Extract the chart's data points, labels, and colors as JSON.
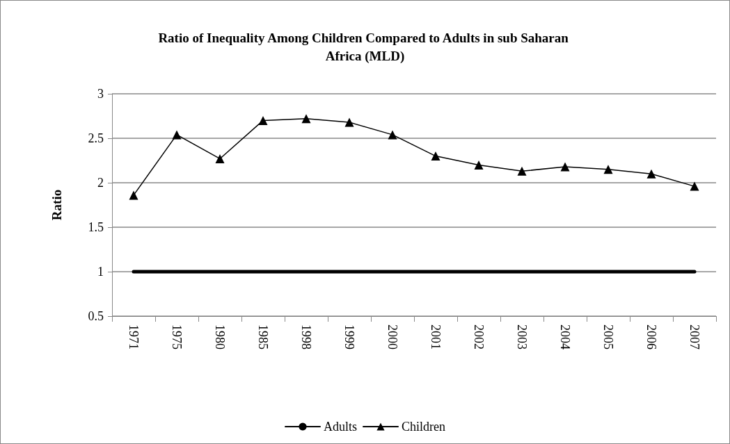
{
  "chart_data": {
    "type": "line",
    "title": "Ratio of Inequality Among Children Compared to Adults in sub Saharan Africa (MLD)",
    "ylabel": "Ratio",
    "categories": [
      "1971",
      "1975",
      "1980",
      "1985",
      "1998",
      "1999",
      "2000",
      "2001",
      "2002",
      "2003",
      "2004",
      "2005",
      "2006",
      "2007"
    ],
    "series": [
      {
        "name": "Adults",
        "color": "#000000",
        "marker": "none",
        "values": [
          1,
          1,
          1,
          1,
          1,
          1,
          1,
          1,
          1,
          1,
          1,
          1,
          1,
          1
        ]
      },
      {
        "name": "Children",
        "color": "#000000",
        "marker": "triangle",
        "values": [
          1.86,
          2.54,
          2.27,
          2.7,
          2.72,
          2.68,
          2.54,
          2.3,
          2.2,
          2.13,
          2.18,
          2.15,
          2.1,
          1.96
        ]
      }
    ],
    "ylim": [
      0.5,
      3
    ],
    "yticks": [
      0.5,
      1,
      1.5,
      2,
      2.5,
      3
    ],
    "grid": "y",
    "legend": "bottom"
  }
}
